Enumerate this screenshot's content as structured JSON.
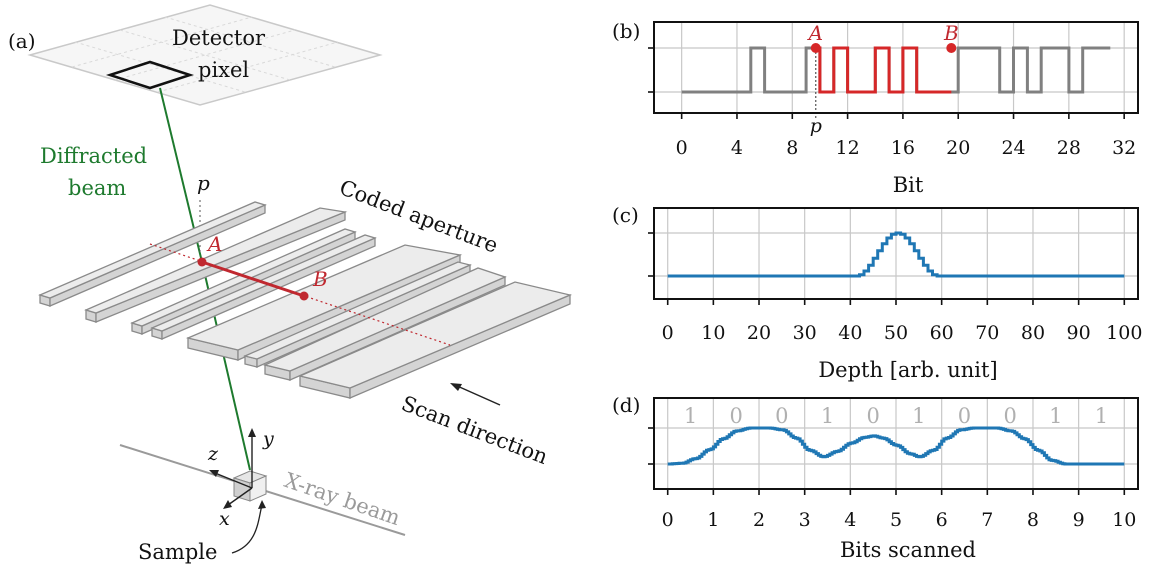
{
  "panel_a": {
    "label": "(a)",
    "detector_label_1": "Detector",
    "detector_label_2": "pixel",
    "diffracted_1": "Diffracted",
    "diffracted_2": "beam",
    "p_label": "p",
    "point_a": "A",
    "point_b": "B",
    "coded_aperture": "Coded aperture",
    "scan_direction": "Scan direction",
    "xray_beam": "X-ray beam",
    "sample": "Sample",
    "axis_x": "x",
    "axis_y": "y",
    "axis_z": "z",
    "colors": {
      "green": "#1e7a2e",
      "red": "#c0282f",
      "gray": "#9a9a9a"
    }
  },
  "chart_data": [
    {
      "panel": "(b)",
      "type": "line",
      "style": "step",
      "xlabel": "Bit",
      "xlim": [
        -2,
        33
      ],
      "xticks": [
        0,
        4,
        8,
        12,
        16,
        20,
        24,
        28,
        32
      ],
      "bits": [
        0,
        0,
        0,
        0,
        0,
        1,
        0,
        0,
        0,
        1,
        0,
        1,
        0,
        0,
        1,
        0,
        1,
        0,
        0,
        0,
        1,
        1,
        1,
        0,
        1,
        0,
        1,
        1,
        0,
        1,
        1,
        1
      ],
      "highlight_range": [
        9.7,
        19.5
      ],
      "marker_a": {
        "label": "A",
        "x": 9.7
      },
      "marker_b": {
        "label": "B",
        "x": 19.5
      },
      "p_label": "p",
      "colors": {
        "base": "#808080",
        "highlight": "#d62728"
      }
    },
    {
      "panel": "(c)",
      "type": "line",
      "xlabel": "Depth [arb. unit]",
      "xlim": [
        -3,
        103
      ],
      "xticks": [
        0,
        10,
        20,
        30,
        40,
        50,
        60,
        70,
        80,
        90,
        100
      ],
      "profile": {
        "center": 50,
        "half_width": 9,
        "baseline": 0,
        "peak": 1
      },
      "color": "#1f77b4"
    },
    {
      "panel": "(d)",
      "type": "line",
      "xlabel": "Bits scanned",
      "xlim": [
        -0.3,
        10.3
      ],
      "xticks": [
        0,
        1,
        2,
        3,
        4,
        5,
        6,
        7,
        8,
        9,
        10
      ],
      "bit_labels": [
        "1",
        "0",
        "0",
        "1",
        "0",
        "1",
        "0",
        "0",
        "1",
        "1"
      ],
      "curve": [
        [
          0,
          0.0
        ],
        [
          0.3,
          0.02
        ],
        [
          0.6,
          0.15
        ],
        [
          0.9,
          0.4
        ],
        [
          1.2,
          0.7
        ],
        [
          1.5,
          0.92
        ],
        [
          1.8,
          1.0
        ],
        [
          2.2,
          1.0
        ],
        [
          2.5,
          0.95
        ],
        [
          2.8,
          0.72
        ],
        [
          3.1,
          0.38
        ],
        [
          3.4,
          0.2
        ],
        [
          3.7,
          0.35
        ],
        [
          4.0,
          0.58
        ],
        [
          4.3,
          0.74
        ],
        [
          4.5,
          0.78
        ],
        [
          4.7,
          0.72
        ],
        [
          5.0,
          0.52
        ],
        [
          5.3,
          0.28
        ],
        [
          5.5,
          0.2
        ],
        [
          5.8,
          0.38
        ],
        [
          6.1,
          0.72
        ],
        [
          6.4,
          0.95
        ],
        [
          6.7,
          1.0
        ],
        [
          7.2,
          1.0
        ],
        [
          7.5,
          0.92
        ],
        [
          7.8,
          0.7
        ],
        [
          8.1,
          0.38
        ],
        [
          8.4,
          0.1
        ],
        [
          8.7,
          0.0
        ],
        [
          10.0,
          0.0
        ]
      ],
      "color": "#1f77b4"
    }
  ]
}
